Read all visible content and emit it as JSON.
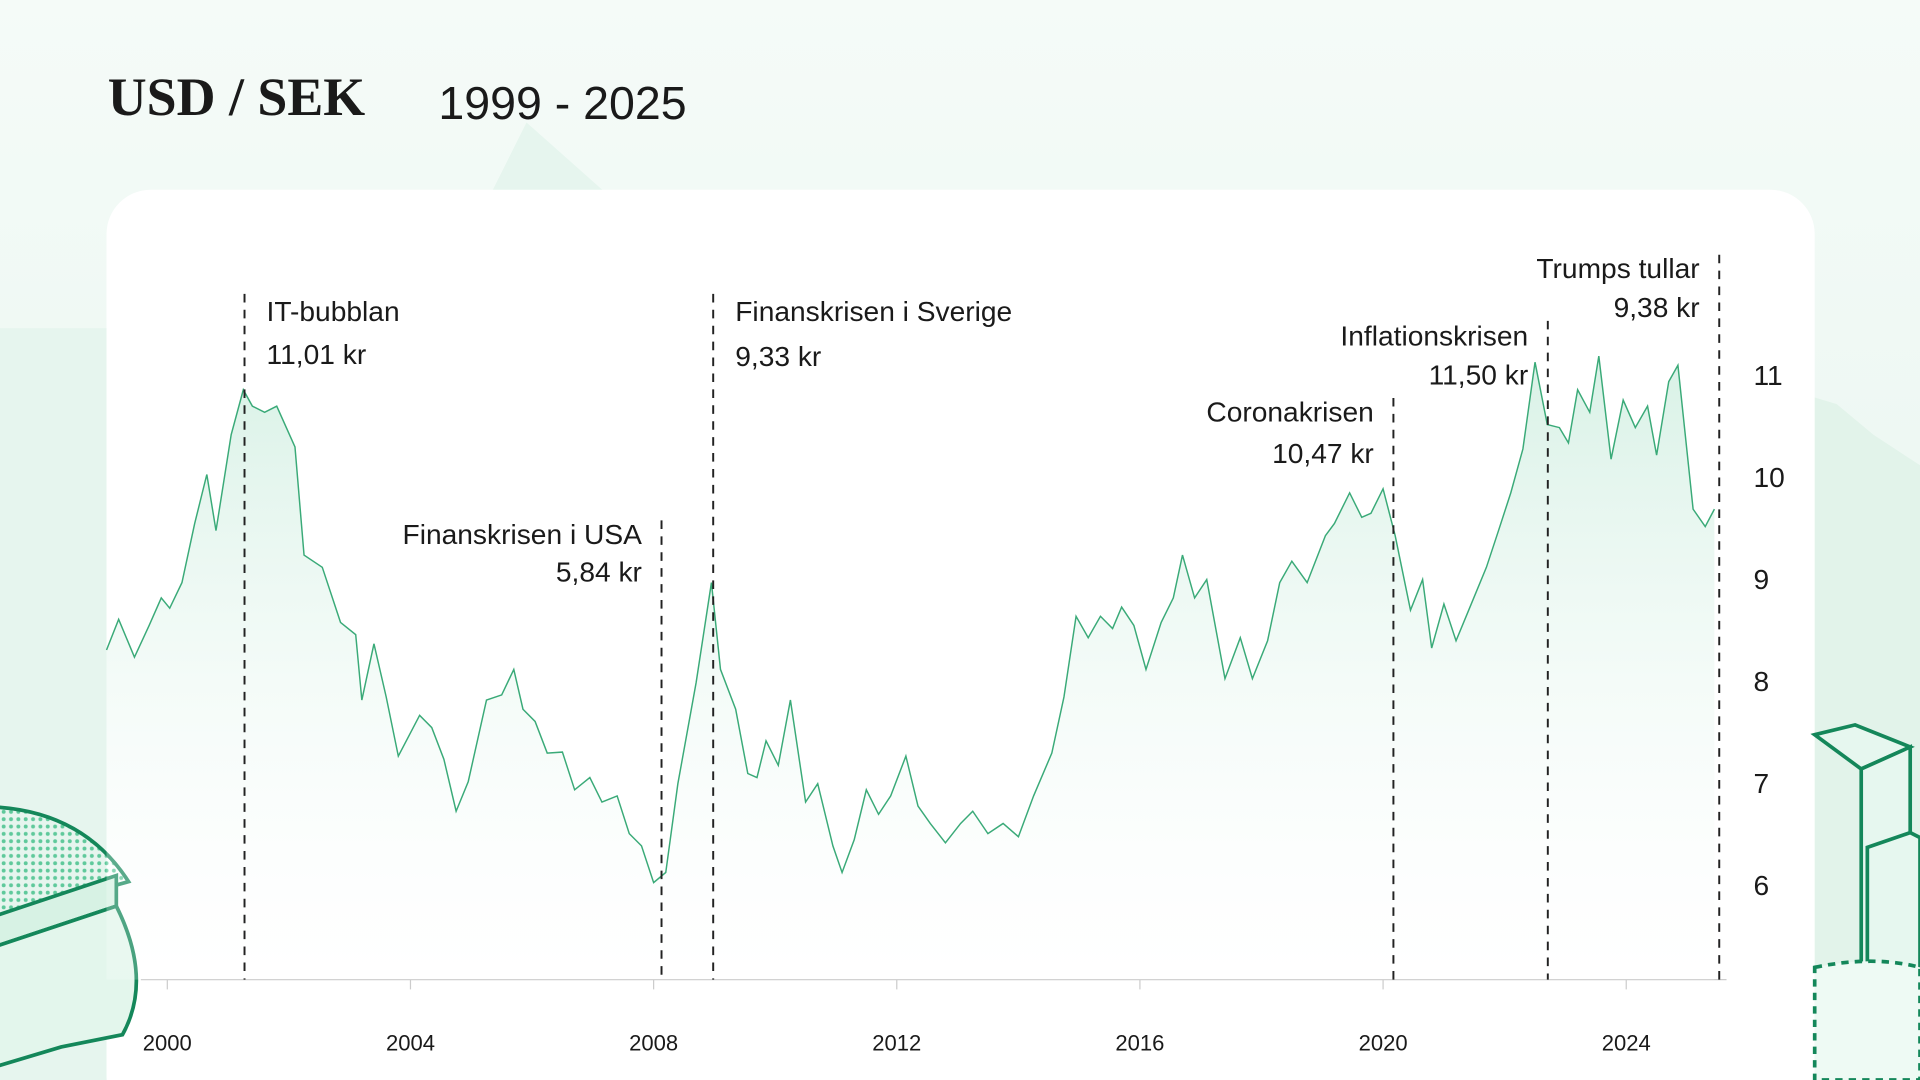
{
  "chart_data": {
    "type": "line",
    "title": "USD / SEK",
    "subtitle": "1999 - 2025",
    "x": [
      1999.0,
      1999.2,
      1999.46,
      1999.7,
      1999.9,
      2000.04,
      2000.24,
      2000.45,
      2000.65,
      2000.8,
      2001.05,
      2001.25,
      2001.4,
      2001.6,
      2001.8,
      2002.1,
      2002.25,
      2002.55,
      2002.85,
      2003.1,
      2003.2,
      2003.4,
      2003.6,
      2003.8,
      2004.15,
      2004.35,
      2004.55,
      2004.75,
      2004.95,
      2005.25,
      2005.5,
      2005.7,
      2005.85,
      2006.05,
      2006.25,
      2006.5,
      2006.7,
      2006.95,
      2007.15,
      2007.4,
      2007.6,
      2007.8,
      2008.0,
      2008.2,
      2008.4,
      2008.7,
      2008.95,
      2009.1,
      2009.35,
      2009.55,
      2009.7,
      2009.85,
      2010.05,
      2010.25,
      2010.5,
      2010.7,
      2010.95,
      2011.1,
      2011.3,
      2011.5,
      2011.7,
      2011.9,
      2012.15,
      2012.35,
      2012.55,
      2012.8,
      2013.05,
      2013.25,
      2013.5,
      2013.75,
      2014.0,
      2014.25,
      2014.55,
      2014.75,
      2014.95,
      2015.15,
      2015.35,
      2015.55,
      2015.7,
      2015.9,
      2016.1,
      2016.35,
      2016.55,
      2016.7,
      2016.9,
      2017.1,
      2017.4,
      2017.65,
      2017.85,
      2018.1,
      2018.3,
      2018.5,
      2018.75,
      2019.05,
      2019.2,
      2019.45,
      2019.65,
      2019.8,
      2020.0,
      2020.2,
      2020.45,
      2020.65,
      2020.8,
      2021.0,
      2021.2,
      2021.45,
      2021.7,
      2021.9,
      2022.1,
      2022.3,
      2022.5,
      2022.7,
      2022.9,
      2023.05,
      2023.2,
      2023.4,
      2023.55,
      2023.75,
      2023.95,
      2024.15,
      2024.35,
      2024.5,
      2024.7,
      2024.85,
      2025.1,
      2025.3,
      2025.45
    ],
    "series": [
      {
        "color": "#3aaa78",
        "values": [
          8.33,
          8.63,
          8.26,
          8.57,
          8.84,
          8.74,
          8.99,
          9.57,
          10.05,
          9.5,
          10.44,
          10.88,
          10.72,
          10.66,
          10.72,
          10.32,
          9.26,
          9.14,
          8.6,
          8.48,
          7.84,
          8.39,
          7.87,
          7.29,
          7.69,
          7.57,
          7.26,
          6.75,
          7.04,
          7.84,
          7.89,
          8.14,
          7.75,
          7.63,
          7.32,
          7.33,
          6.96,
          7.08,
          6.84,
          6.9,
          6.53,
          6.41,
          6.05,
          6.15,
          7.02,
          8.01,
          8.99,
          8.14,
          7.75,
          7.12,
          7.08,
          7.44,
          7.2,
          7.84,
          6.84,
          7.02,
          6.41,
          6.15,
          6.47,
          6.96,
          6.72,
          6.9,
          7.29,
          6.8,
          6.63,
          6.44,
          6.63,
          6.75,
          6.53,
          6.63,
          6.5,
          6.9,
          7.32,
          7.87,
          8.66,
          8.45,
          8.66,
          8.54,
          8.75,
          8.57,
          8.14,
          8.6,
          8.84,
          9.26,
          8.84,
          9.02,
          8.05,
          8.45,
          8.05,
          8.42,
          8.99,
          9.2,
          8.99,
          9.45,
          9.57,
          9.87,
          9.63,
          9.67,
          9.91,
          9.45,
          8.72,
          9.02,
          8.35,
          8.78,
          8.42,
          8.78,
          9.14,
          9.5,
          9.87,
          10.3,
          11.15,
          10.54,
          10.51,
          10.36,
          10.88,
          10.66,
          11.21,
          10.2,
          10.78,
          10.51,
          10.72,
          10.24,
          10.96,
          11.12,
          9.71,
          9.54,
          9.71
        ]
      }
    ],
    "xlim": [
      1999,
      2025.65
    ],
    "ylim": [
      5.1,
      12.3
    ],
    "xticks": [
      2000,
      2004,
      2008,
      2012,
      2016,
      2020,
      2024
    ],
    "yticks": [
      6,
      7,
      8,
      9,
      10,
      11
    ],
    "y_axis_side": "right",
    "annotations": [
      {
        "x": 2001.27,
        "label": "IT-bubblan",
        "value": "11,01 kr"
      },
      {
        "x": 2008.13,
        "label": "Finanskrisen i USA",
        "value": "5,84 kr"
      },
      {
        "x": 2008.98,
        "label": "Finanskrisen i Sverige",
        "value": "9,33 kr"
      },
      {
        "x": 2020.17,
        "label": "Coronakrisen",
        "value": "10,47 kr"
      },
      {
        "x": 2022.71,
        "label": "Inflationskrisen",
        "value": "11,50 kr"
      },
      {
        "x": 2025.53,
        "label": "Trumps tullar",
        "value": "9,38 kr"
      }
    ]
  }
}
